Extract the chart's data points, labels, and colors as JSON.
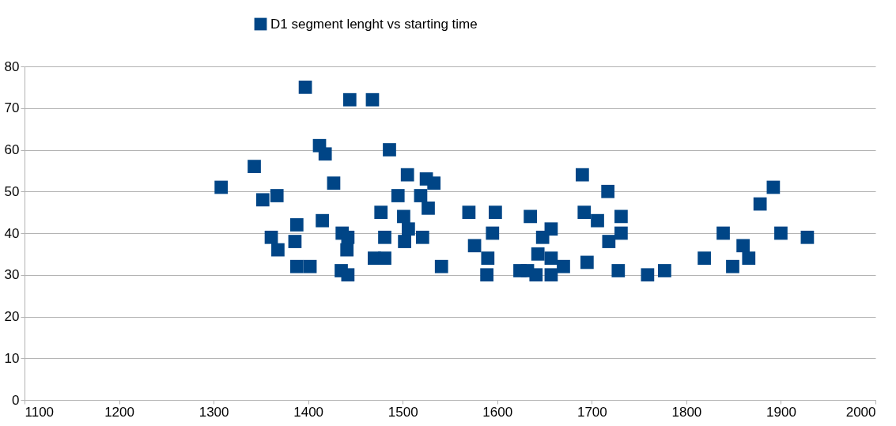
{
  "chart_data": {
    "type": "scatter",
    "legend": "top",
    "marker": "square",
    "grid": "y",
    "x": [
      1308,
      1343,
      1352,
      1361,
      1367,
      1368,
      1386,
      1388,
      1388,
      1397,
      1402,
      1412,
      1418,
      1415,
      1427,
      1435,
      1436,
      1441,
      1442,
      1442,
      1444,
      1468,
      1470,
      1477,
      1481,
      1481,
      1486,
      1495,
      1501,
      1502,
      1506,
      1505,
      1521,
      1519,
      1525,
      1527,
      1533,
      1541,
      1570,
      1576,
      1589,
      1590,
      1595,
      1598,
      1624,
      1632,
      1635,
      1643,
      1648,
      1657,
      1657,
      1670,
      1641,
      1657,
      1690,
      1717,
      1692,
      1706,
      1731,
      1731,
      1718,
      1695,
      1728,
      1759,
      1777,
      1819,
      1839,
      1849,
      1860,
      1866,
      1878,
      1892,
      1900,
      1928
    ],
    "series": [
      {
        "name": "D1 segment lenght vs starting time",
        "color": "#004586",
        "values": [
          51,
          56,
          48,
          39,
          49,
          36,
          38,
          42,
          32,
          75,
          32,
          61,
          59,
          43,
          52,
          31,
          40,
          36,
          39,
          30,
          72,
          72,
          34,
          45,
          34,
          39,
          60,
          49,
          44,
          38,
          41,
          54,
          39,
          49,
          53,
          46,
          52,
          32,
          45,
          37,
          30,
          34,
          40,
          45,
          31,
          31,
          44,
          35,
          39,
          41,
          34,
          32,
          30,
          30,
          54,
          50,
          45,
          43,
          44,
          40,
          38,
          33,
          31,
          30,
          31,
          34,
          40,
          32,
          37,
          34,
          47,
          51,
          40,
          39
        ]
      }
    ],
    "xlim": [
      1100,
      2000
    ],
    "xticks": [
      1100,
      1200,
      1300,
      1400,
      1500,
      1600,
      1700,
      1800,
      1900,
      2000
    ],
    "ylim": [
      0,
      80
    ],
    "yticks": [
      0,
      10,
      20,
      30,
      40,
      50,
      60,
      70,
      80
    ]
  }
}
